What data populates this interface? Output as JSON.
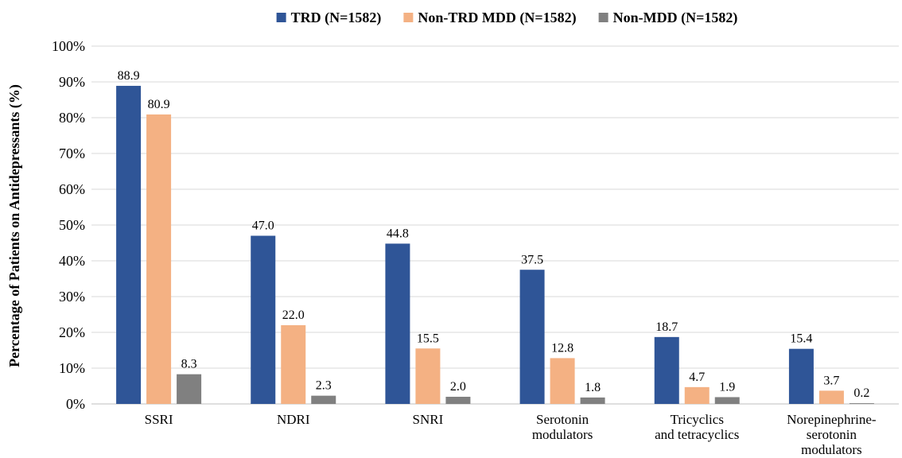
{
  "chart_data": {
    "type": "bar",
    "ylabel": "Percentage of Patients on Antidepressants (%)",
    "ylim": [
      0,
      100
    ],
    "yticks": [
      "0%",
      "10%",
      "20%",
      "30%",
      "40%",
      "50%",
      "60%",
      "70%",
      "80%",
      "90%",
      "100%"
    ],
    "grid": true,
    "legend_position": "top",
    "categories": [
      [
        "SSRI"
      ],
      [
        "NDRI"
      ],
      [
        "SNRI"
      ],
      [
        "Serotonin",
        "modulators"
      ],
      [
        "Tricyclics",
        "and tetracyclics"
      ],
      [
        "Norepinephrine-",
        "serotonin",
        "modulators"
      ]
    ],
    "series": [
      {
        "name": "TRD (N=1582)",
        "color": "#2f5597",
        "values": [
          88.9,
          47.0,
          44.8,
          37.5,
          18.7,
          15.4
        ],
        "labels": [
          "88.9",
          "47.0",
          "44.8",
          "37.5",
          "18.7",
          "15.4"
        ]
      },
      {
        "name": "Non-TRD MDD (N=1582)",
        "color": "#f4b183",
        "values": [
          80.9,
          22.0,
          15.5,
          12.8,
          4.7,
          3.7
        ],
        "labels": [
          "80.9",
          "22.0",
          "15.5",
          "12.8",
          "4.7",
          "3.7"
        ]
      },
      {
        "name": "Non-MDD (N=1582)",
        "color": "#808080",
        "values": [
          8.3,
          2.3,
          2.0,
          1.8,
          1.9,
          0.2
        ],
        "labels": [
          "8.3",
          "2.3",
          "2.0",
          "1.8",
          "1.9",
          "0.2"
        ]
      }
    ]
  }
}
